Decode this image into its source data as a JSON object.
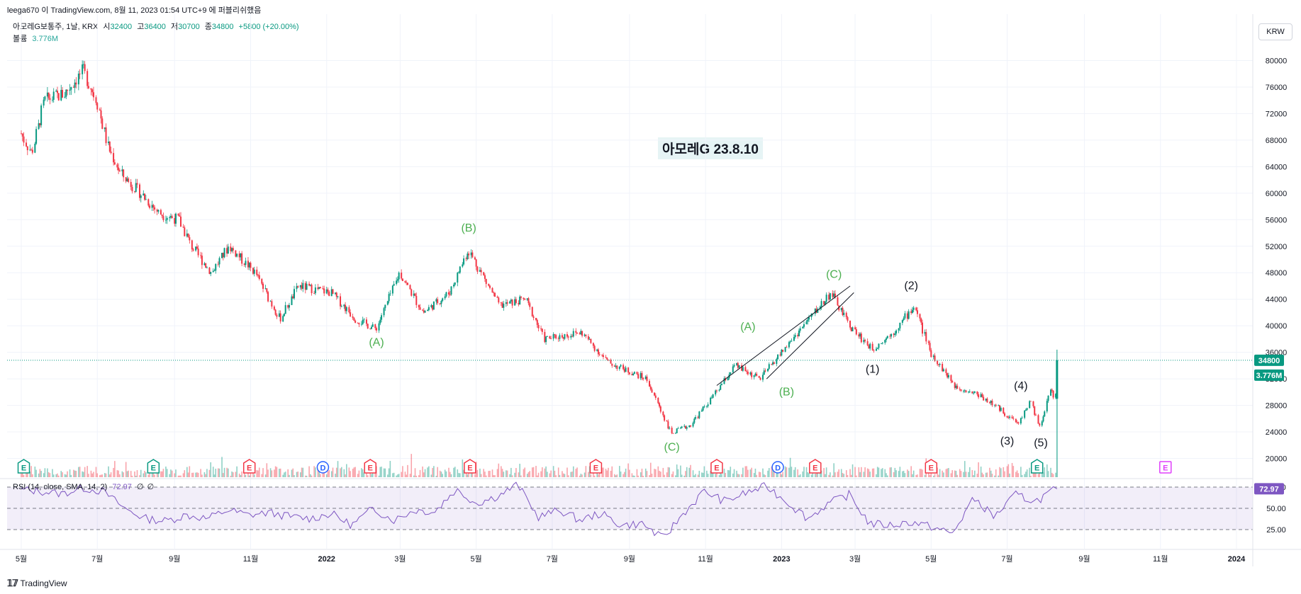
{
  "header": {
    "publish_line": "leega670 이 TradingView.com, 8월 11, 2023 01:54 UTC+9 에 퍼블리쉬했음"
  },
  "legend": {
    "symbol": "아모레G보통주, 1날, KRX",
    "open_label": "시",
    "open": "32400",
    "high_label": "고",
    "high": "36400",
    "low_label": "저",
    "low": "30700",
    "close_label": "종",
    "close": "34800",
    "change": "+5800 (+20.00%)",
    "volume_label": "볼륨",
    "volume": "3.776M"
  },
  "currency_button": "KRW",
  "annotation_title": "아모레G 23.8.10",
  "price_tags": {
    "last": "34800",
    "volume": "3.776M",
    "rsi": "72.97"
  },
  "rsi_legend": {
    "label": "RSI (14, close, SMA, 14, 2)",
    "value": "72.97",
    "extra1": "∅",
    "extra2": "∅"
  },
  "footer": {
    "brand": "TradingView"
  },
  "colors": {
    "up": "#089981",
    "down": "#f23645",
    "rsi": "#7e57c2",
    "wave_green": "#4caf50",
    "wave_black": "#131722",
    "event_e_green": "#089981",
    "event_e_red": "#f23645",
    "event_d": "#2962ff",
    "event_e_future": "#e040fb"
  },
  "chart_data": {
    "type": "candlestick",
    "y_axis": {
      "ticks": [
        20000,
        24000,
        28000,
        32000,
        36000,
        40000,
        44000,
        48000,
        52000,
        56000,
        60000,
        64000,
        68000,
        72000,
        76000,
        80000
      ]
    },
    "x_axis": {
      "ticks": [
        "5월",
        "7월",
        "9월",
        "11월",
        "2022",
        "3월",
        "5월",
        "7월",
        "9월",
        "11월",
        "2023",
        "3월",
        "5월",
        "7월",
        "9월",
        "11월",
        "2024"
      ]
    },
    "price_path": [
      [
        "2021-05-01",
        69000
      ],
      [
        "2021-05-10",
        66000
      ],
      [
        "2021-05-20",
        74000
      ],
      [
        "2021-06-05",
        75000
      ],
      [
        "2021-06-20",
        78500
      ],
      [
        "2021-07-01",
        74000
      ],
      [
        "2021-07-10",
        67000
      ],
      [
        "2021-07-20",
        63000
      ],
      [
        "2021-08-05",
        60000
      ],
      [
        "2021-08-20",
        57000
      ],
      [
        "2021-09-05",
        56000
      ],
      [
        "2021-09-15",
        52000
      ],
      [
        "2021-10-01",
        48000
      ],
      [
        "2021-10-15",
        52000
      ],
      [
        "2021-11-05",
        48000
      ],
      [
        "2021-11-25",
        41000
      ],
      [
        "2021-12-10",
        46000
      ],
      [
        "2022-01-05",
        45000
      ],
      [
        "2022-01-25",
        41000
      ],
      [
        "2022-02-10",
        39500
      ],
      [
        "2022-03-01",
        48000
      ],
      [
        "2022-03-20",
        42000
      ],
      [
        "2022-04-10",
        45000
      ],
      [
        "2022-04-25",
        51500
      ],
      [
        "2022-05-20",
        43000
      ],
      [
        "2022-06-10",
        44000
      ],
      [
        "2022-06-25",
        38000
      ],
      [
        "2022-07-25",
        39000
      ],
      [
        "2022-08-15",
        34500
      ],
      [
        "2022-09-15",
        32000
      ],
      [
        "2022-10-05",
        23800
      ],
      [
        "2022-10-20",
        25000
      ],
      [
        "2022-11-10",
        30000
      ],
      [
        "2022-11-25",
        34000
      ],
      [
        "2022-12-15",
        32000
      ],
      [
        "2023-01-10",
        38000
      ],
      [
        "2023-02-10",
        45000
      ],
      [
        "2023-02-25",
        40000
      ],
      [
        "2023-03-15",
        36500
      ],
      [
        "2023-04-01",
        39000
      ],
      [
        "2023-04-18",
        43000
      ],
      [
        "2023-05-01",
        36000
      ],
      [
        "2023-05-20",
        31000
      ],
      [
        "2023-06-10",
        29500
      ],
      [
        "2023-06-25",
        27500
      ],
      [
        "2023-07-10",
        25200
      ],
      [
        "2023-07-20",
        28700
      ],
      [
        "2023-07-28",
        24500
      ],
      [
        "2023-08-05",
        30500
      ],
      [
        "2023-08-09",
        29000
      ],
      [
        "2023-08-10",
        34800
      ]
    ],
    "last_close": 34800,
    "last_high": 36400,
    "rsi": {
      "levels": [
        25,
        50,
        75
      ],
      "values": [
        72,
        70,
        67,
        74,
        70,
        50,
        38,
        35,
        42,
        38,
        48,
        42,
        45,
        40,
        38,
        44,
        30,
        50,
        36,
        48,
        46,
        72,
        56,
        64,
        78,
        40,
        48,
        36,
        44,
        30,
        32,
        14,
        44,
        70,
        58,
        68,
        76,
        58,
        38,
        56,
        66,
        32,
        30,
        34,
        28,
        20,
        62,
        40,
        66,
        58,
        72.97
      ]
    },
    "wave_labels": [
      {
        "text": "(B)",
        "date": "2022-04-25",
        "price": 54200,
        "color": "green"
      },
      {
        "text": "(A)",
        "date": "2022-02-10",
        "price": 37000,
        "color": "green"
      },
      {
        "text": "(C)",
        "date": "2022-10-05",
        "price": 21200,
        "color": "green"
      },
      {
        "text": "(A)",
        "date": "2022-12-05",
        "price": 39300,
        "color": "green"
      },
      {
        "text": "(B)",
        "date": "2023-01-05",
        "price": 29500,
        "color": "green"
      },
      {
        "text": "(C)",
        "date": "2023-02-12",
        "price": 47200,
        "color": "green"
      },
      {
        "text": "(1)",
        "date": "2023-03-15",
        "price": 32900,
        "color": "black"
      },
      {
        "text": "(2)",
        "date": "2023-04-15",
        "price": 45500,
        "color": "black"
      },
      {
        "text": "(3)",
        "date": "2023-07-01",
        "price": 22100,
        "color": "black"
      },
      {
        "text": "(4)",
        "date": "2023-07-12",
        "price": 30400,
        "color": "black"
      },
      {
        "text": "(5)",
        "date": "2023-07-28",
        "price": 21800,
        "color": "black"
      }
    ],
    "events": [
      {
        "label": "E",
        "date": "2021-05-03",
        "kind": "green"
      },
      {
        "label": "E",
        "date": "2021-08-15",
        "kind": "green"
      },
      {
        "label": "E",
        "date": "2021-10-31",
        "kind": "red"
      },
      {
        "label": "D",
        "date": "2021-12-29",
        "kind": "blue"
      },
      {
        "label": "E",
        "date": "2022-02-05",
        "kind": "red"
      },
      {
        "label": "E",
        "date": "2022-04-26",
        "kind": "red"
      },
      {
        "label": "E",
        "date": "2022-08-05",
        "kind": "red"
      },
      {
        "label": "E",
        "date": "2022-11-10",
        "kind": "red"
      },
      {
        "label": "D",
        "date": "2022-12-29",
        "kind": "blue"
      },
      {
        "label": "E",
        "date": "2023-01-28",
        "kind": "red"
      },
      {
        "label": "E",
        "date": "2023-05-01",
        "kind": "red"
      },
      {
        "label": "E",
        "date": "2023-07-25",
        "kind": "green"
      },
      {
        "label": "E",
        "date": "2023-11-05",
        "kind": "future"
      }
    ]
  }
}
